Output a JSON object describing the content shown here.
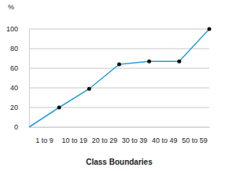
{
  "chart_data": {
    "type": "line",
    "y_label": "%",
    "x_label": "Class Boundaries",
    "categories": [
      null,
      "1 to 9",
      "10 to 19",
      "20 to 29",
      "30 to 39",
      "40 to 49",
      "50 to 59"
    ],
    "values": [
      0,
      20,
      39,
      64,
      67,
      67,
      100
    ],
    "color": "#2a9fd8",
    "marker": "circle",
    "ylim": [
      0,
      100
    ],
    "yticks": [
      0,
      20,
      40,
      60,
      80,
      100
    ],
    "grid": true
  }
}
